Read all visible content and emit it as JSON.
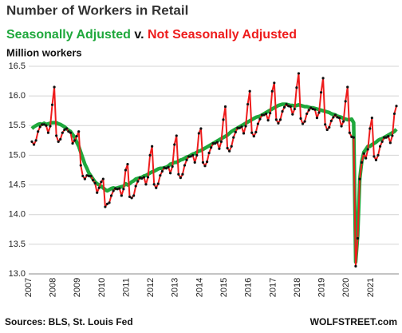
{
  "chart_data": {
    "type": "line",
    "title": "Number of Workers in Retail",
    "legend_separator": "v.",
    "y_axis_label": "Million workers",
    "source": "Sources: BLS, St. Louis Fed",
    "watermark": "WOLFSTREET.com",
    "categories": [
      "2007",
      null,
      null,
      null,
      null,
      null,
      null,
      null,
      null,
      null,
      null,
      null,
      "2008",
      null,
      null,
      null,
      null,
      null,
      null,
      null,
      null,
      null,
      null,
      null,
      "2009",
      null,
      null,
      null,
      null,
      null,
      null,
      null,
      null,
      null,
      null,
      null,
      "2010",
      null,
      null,
      null,
      null,
      null,
      null,
      null,
      null,
      null,
      null,
      null,
      "2011",
      null,
      null,
      null,
      null,
      null,
      null,
      null,
      null,
      null,
      null,
      null,
      "2012",
      null,
      null,
      null,
      null,
      null,
      null,
      null,
      null,
      null,
      null,
      null,
      "2013",
      null,
      null,
      null,
      null,
      null,
      null,
      null,
      null,
      null,
      null,
      null,
      "2014",
      null,
      null,
      null,
      null,
      null,
      null,
      null,
      null,
      null,
      null,
      null,
      "2015",
      null,
      null,
      null,
      null,
      null,
      null,
      null,
      null,
      null,
      null,
      null,
      "2016",
      null,
      null,
      null,
      null,
      null,
      null,
      null,
      null,
      null,
      null,
      null,
      "2017",
      null,
      null,
      null,
      null,
      null,
      null,
      null,
      null,
      null,
      null,
      null,
      "2018",
      null,
      null,
      null,
      null,
      null,
      null,
      null,
      null,
      null,
      null,
      null,
      "2019",
      null,
      null,
      null,
      null,
      null,
      null,
      null,
      null,
      null,
      null,
      null,
      "2020",
      null,
      null,
      null,
      null,
      null,
      null,
      null,
      null,
      null,
      null,
      null,
      "2021",
      null,
      null,
      null,
      null,
      null,
      null,
      null,
      null,
      null,
      null,
      null
    ],
    "series": [
      {
        "name": "Seasonally Adjusted",
        "color": "#1fa83c",
        "values": [
          15.45,
          15.48,
          15.5,
          15.52,
          15.53,
          15.52,
          15.54,
          15.52,
          15.53,
          15.54,
          15.55,
          15.55,
          15.55,
          15.53,
          15.52,
          15.5,
          15.48,
          15.45,
          15.42,
          15.4,
          15.35,
          15.3,
          15.22,
          15.15,
          15.05,
          14.95,
          14.85,
          14.78,
          14.7,
          14.65,
          14.6,
          14.55,
          14.52,
          14.5,
          14.48,
          14.45,
          14.42,
          14.4,
          14.42,
          14.44,
          14.45,
          14.44,
          14.45,
          14.46,
          14.47,
          14.48,
          14.52,
          14.5,
          14.52,
          14.55,
          14.57,
          14.6,
          14.61,
          14.62,
          14.63,
          14.65,
          14.66,
          14.68,
          14.7,
          14.72,
          14.73,
          14.75,
          14.77,
          14.78,
          14.78,
          14.79,
          14.8,
          14.82,
          14.85,
          14.86,
          14.88,
          14.88,
          14.9,
          14.92,
          14.93,
          14.95,
          14.97,
          14.98,
          15.0,
          15.02,
          15.03,
          15.05,
          15.07,
          15.08,
          15.1,
          15.12,
          15.14,
          15.16,
          15.18,
          15.2,
          15.22,
          15.24,
          15.26,
          15.28,
          15.3,
          15.32,
          15.34,
          15.37,
          15.4,
          15.42,
          15.44,
          15.46,
          15.48,
          15.5,
          15.52,
          15.54,
          15.56,
          15.58,
          15.6,
          15.62,
          15.64,
          15.65,
          15.66,
          15.68,
          15.7,
          15.72,
          15.74,
          15.76,
          15.78,
          15.8,
          15.82,
          15.84,
          15.85,
          15.86,
          15.86,
          15.86,
          15.85,
          15.84,
          15.84,
          15.83,
          15.84,
          15.85,
          15.84,
          15.83,
          15.82,
          15.82,
          15.81,
          15.8,
          15.8,
          15.79,
          15.78,
          15.77,
          15.76,
          15.75,
          15.74,
          15.73,
          15.72,
          15.7,
          15.69,
          15.68,
          15.66,
          15.65,
          15.64,
          15.62,
          15.61,
          15.6,
          15.6,
          15.61,
          15.55,
          13.2,
          13.65,
          14.6,
          14.9,
          15.05,
          15.1,
          15.15,
          15.15,
          15.18,
          15.2,
          15.22,
          15.25,
          15.27,
          15.28,
          15.3,
          15.32,
          15.34,
          15.36,
          15.38,
          15.4,
          15.44
        ]
      },
      {
        "name": "Not Seasonally Adjusted",
        "color": "#ee1c1c",
        "marker_color": "#111111",
        "values": [
          15.23,
          15.18,
          15.25,
          15.4,
          15.48,
          15.52,
          15.52,
          15.5,
          15.38,
          15.49,
          15.85,
          16.15,
          15.33,
          15.23,
          15.27,
          15.38,
          15.43,
          15.45,
          15.4,
          15.38,
          15.2,
          15.25,
          15.32,
          15.4,
          14.83,
          14.65,
          14.6,
          14.66,
          14.65,
          14.65,
          14.58,
          14.53,
          14.37,
          14.45,
          14.55,
          14.6,
          14.13,
          14.18,
          14.2,
          14.32,
          14.4,
          14.44,
          14.43,
          14.44,
          14.32,
          14.43,
          14.75,
          14.85,
          14.3,
          14.28,
          14.32,
          14.48,
          14.56,
          14.62,
          14.61,
          14.63,
          14.51,
          14.63,
          15.0,
          15.15,
          14.51,
          14.45,
          14.52,
          14.66,
          14.73,
          14.79,
          14.78,
          14.8,
          14.7,
          14.81,
          15.18,
          15.33,
          14.68,
          14.62,
          14.68,
          14.83,
          14.92,
          14.98,
          14.98,
          15.0,
          14.88,
          15.0,
          15.37,
          15.45,
          14.88,
          14.82,
          14.89,
          15.04,
          15.13,
          15.2,
          15.2,
          15.22,
          15.11,
          15.23,
          15.6,
          15.82,
          15.12,
          15.07,
          15.15,
          15.3,
          15.39,
          15.46,
          15.46,
          15.48,
          15.37,
          15.49,
          15.86,
          16.08,
          15.38,
          15.32,
          15.39,
          15.53,
          15.61,
          15.68,
          15.68,
          15.7,
          15.59,
          15.71,
          16.08,
          16.22,
          15.6,
          15.54,
          15.6,
          15.74,
          15.81,
          15.86,
          15.83,
          15.82,
          15.69,
          15.78,
          16.14,
          16.38,
          15.62,
          15.53,
          15.57,
          15.7,
          15.76,
          15.8,
          15.78,
          15.77,
          15.63,
          15.72,
          16.06,
          16.3,
          15.52,
          15.43,
          15.47,
          15.58,
          15.64,
          15.68,
          15.64,
          15.63,
          15.49,
          15.57,
          15.91,
          16.15,
          15.38,
          15.31,
          15.3,
          13.13,
          13.6,
          14.6,
          14.88,
          15.03,
          14.95,
          15.1,
          15.45,
          15.63,
          14.98,
          14.92,
          15.0,
          15.15,
          15.23,
          15.3,
          15.3,
          15.32,
          15.21,
          15.33,
          15.7,
          15.83
        ]
      }
    ],
    "ylim": [
      13.0,
      16.5
    ],
    "yticks": [
      {
        "value": 13.0,
        "label": "13.0"
      },
      {
        "value": 13.5,
        "label": "13.5"
      },
      {
        "value": 14.0,
        "label": "14.0"
      },
      {
        "value": 14.5,
        "label": "14.5"
      },
      {
        "value": 15.0,
        "label": "15.0"
      },
      {
        "value": 15.5,
        "label": "15.5"
      },
      {
        "value": 16.0,
        "label": "16.0"
      },
      {
        "value": 16.5,
        "label": "16.5"
      }
    ],
    "grid": true
  }
}
